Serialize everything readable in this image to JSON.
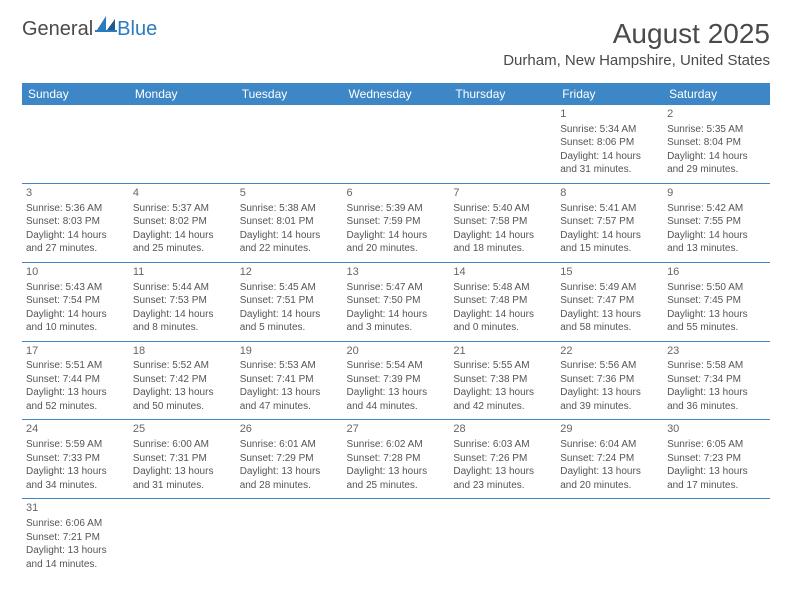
{
  "brand": {
    "general": "General",
    "blue": "Blue"
  },
  "header": {
    "month_title": "August 2025",
    "location": "Durham, New Hampshire, United States"
  },
  "styling": {
    "header_bg": "#3d87c7",
    "header_text": "#ffffff",
    "row_divider": "#3d87c7",
    "body_text": "#555555",
    "title_text": "#4a4a4a",
    "brand_blue": "#2b7bbf",
    "page_bg": "#ffffff",
    "daynum_fontsize": 11,
    "cell_fontsize": 10,
    "header_fontsize": 12,
    "title_fontsize": 28,
    "location_fontsize": 15
  },
  "day_headers": [
    "Sunday",
    "Monday",
    "Tuesday",
    "Wednesday",
    "Thursday",
    "Friday",
    "Saturday"
  ],
  "weeks": [
    [
      null,
      null,
      null,
      null,
      null,
      {
        "d": "1",
        "sr": "Sunrise: 5:34 AM",
        "ss": "Sunset: 8:06 PM",
        "dl1": "Daylight: 14 hours",
        "dl2": "and 31 minutes."
      },
      {
        "d": "2",
        "sr": "Sunrise: 5:35 AM",
        "ss": "Sunset: 8:04 PM",
        "dl1": "Daylight: 14 hours",
        "dl2": "and 29 minutes."
      }
    ],
    [
      {
        "d": "3",
        "sr": "Sunrise: 5:36 AM",
        "ss": "Sunset: 8:03 PM",
        "dl1": "Daylight: 14 hours",
        "dl2": "and 27 minutes."
      },
      {
        "d": "4",
        "sr": "Sunrise: 5:37 AM",
        "ss": "Sunset: 8:02 PM",
        "dl1": "Daylight: 14 hours",
        "dl2": "and 25 minutes."
      },
      {
        "d": "5",
        "sr": "Sunrise: 5:38 AM",
        "ss": "Sunset: 8:01 PM",
        "dl1": "Daylight: 14 hours",
        "dl2": "and 22 minutes."
      },
      {
        "d": "6",
        "sr": "Sunrise: 5:39 AM",
        "ss": "Sunset: 7:59 PM",
        "dl1": "Daylight: 14 hours",
        "dl2": "and 20 minutes."
      },
      {
        "d": "7",
        "sr": "Sunrise: 5:40 AM",
        "ss": "Sunset: 7:58 PM",
        "dl1": "Daylight: 14 hours",
        "dl2": "and 18 minutes."
      },
      {
        "d": "8",
        "sr": "Sunrise: 5:41 AM",
        "ss": "Sunset: 7:57 PM",
        "dl1": "Daylight: 14 hours",
        "dl2": "and 15 minutes."
      },
      {
        "d": "9",
        "sr": "Sunrise: 5:42 AM",
        "ss": "Sunset: 7:55 PM",
        "dl1": "Daylight: 14 hours",
        "dl2": "and 13 minutes."
      }
    ],
    [
      {
        "d": "10",
        "sr": "Sunrise: 5:43 AM",
        "ss": "Sunset: 7:54 PM",
        "dl1": "Daylight: 14 hours",
        "dl2": "and 10 minutes."
      },
      {
        "d": "11",
        "sr": "Sunrise: 5:44 AM",
        "ss": "Sunset: 7:53 PM",
        "dl1": "Daylight: 14 hours",
        "dl2": "and 8 minutes."
      },
      {
        "d": "12",
        "sr": "Sunrise: 5:45 AM",
        "ss": "Sunset: 7:51 PM",
        "dl1": "Daylight: 14 hours",
        "dl2": "and 5 minutes."
      },
      {
        "d": "13",
        "sr": "Sunrise: 5:47 AM",
        "ss": "Sunset: 7:50 PM",
        "dl1": "Daylight: 14 hours",
        "dl2": "and 3 minutes."
      },
      {
        "d": "14",
        "sr": "Sunrise: 5:48 AM",
        "ss": "Sunset: 7:48 PM",
        "dl1": "Daylight: 14 hours",
        "dl2": "and 0 minutes."
      },
      {
        "d": "15",
        "sr": "Sunrise: 5:49 AM",
        "ss": "Sunset: 7:47 PM",
        "dl1": "Daylight: 13 hours",
        "dl2": "and 58 minutes."
      },
      {
        "d": "16",
        "sr": "Sunrise: 5:50 AM",
        "ss": "Sunset: 7:45 PM",
        "dl1": "Daylight: 13 hours",
        "dl2": "and 55 minutes."
      }
    ],
    [
      {
        "d": "17",
        "sr": "Sunrise: 5:51 AM",
        "ss": "Sunset: 7:44 PM",
        "dl1": "Daylight: 13 hours",
        "dl2": "and 52 minutes."
      },
      {
        "d": "18",
        "sr": "Sunrise: 5:52 AM",
        "ss": "Sunset: 7:42 PM",
        "dl1": "Daylight: 13 hours",
        "dl2": "and 50 minutes."
      },
      {
        "d": "19",
        "sr": "Sunrise: 5:53 AM",
        "ss": "Sunset: 7:41 PM",
        "dl1": "Daylight: 13 hours",
        "dl2": "and 47 minutes."
      },
      {
        "d": "20",
        "sr": "Sunrise: 5:54 AM",
        "ss": "Sunset: 7:39 PM",
        "dl1": "Daylight: 13 hours",
        "dl2": "and 44 minutes."
      },
      {
        "d": "21",
        "sr": "Sunrise: 5:55 AM",
        "ss": "Sunset: 7:38 PM",
        "dl1": "Daylight: 13 hours",
        "dl2": "and 42 minutes."
      },
      {
        "d": "22",
        "sr": "Sunrise: 5:56 AM",
        "ss": "Sunset: 7:36 PM",
        "dl1": "Daylight: 13 hours",
        "dl2": "and 39 minutes."
      },
      {
        "d": "23",
        "sr": "Sunrise: 5:58 AM",
        "ss": "Sunset: 7:34 PM",
        "dl1": "Daylight: 13 hours",
        "dl2": "and 36 minutes."
      }
    ],
    [
      {
        "d": "24",
        "sr": "Sunrise: 5:59 AM",
        "ss": "Sunset: 7:33 PM",
        "dl1": "Daylight: 13 hours",
        "dl2": "and 34 minutes."
      },
      {
        "d": "25",
        "sr": "Sunrise: 6:00 AM",
        "ss": "Sunset: 7:31 PM",
        "dl1": "Daylight: 13 hours",
        "dl2": "and 31 minutes."
      },
      {
        "d": "26",
        "sr": "Sunrise: 6:01 AM",
        "ss": "Sunset: 7:29 PM",
        "dl1": "Daylight: 13 hours",
        "dl2": "and 28 minutes."
      },
      {
        "d": "27",
        "sr": "Sunrise: 6:02 AM",
        "ss": "Sunset: 7:28 PM",
        "dl1": "Daylight: 13 hours",
        "dl2": "and 25 minutes."
      },
      {
        "d": "28",
        "sr": "Sunrise: 6:03 AM",
        "ss": "Sunset: 7:26 PM",
        "dl1": "Daylight: 13 hours",
        "dl2": "and 23 minutes."
      },
      {
        "d": "29",
        "sr": "Sunrise: 6:04 AM",
        "ss": "Sunset: 7:24 PM",
        "dl1": "Daylight: 13 hours",
        "dl2": "and 20 minutes."
      },
      {
        "d": "30",
        "sr": "Sunrise: 6:05 AM",
        "ss": "Sunset: 7:23 PM",
        "dl1": "Daylight: 13 hours",
        "dl2": "and 17 minutes."
      }
    ],
    [
      {
        "d": "31",
        "sr": "Sunrise: 6:06 AM",
        "ss": "Sunset: 7:21 PM",
        "dl1": "Daylight: 13 hours",
        "dl2": "and 14 minutes."
      },
      null,
      null,
      null,
      null,
      null,
      null
    ]
  ]
}
